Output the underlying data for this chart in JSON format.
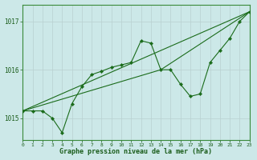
{
  "title": "Graphe pression niveau de la mer (hPa)",
  "bg_color": "#cce8e8",
  "line_color": "#1a6b1a",
  "grid_v_color": "#c8c8c8",
  "grid_h_color": "#c8c8c8",
  "yticks": [
    1015,
    1016,
    1017
  ],
  "ylim": [
    1014.55,
    1017.35
  ],
  "xlim": [
    0,
    23
  ],
  "series1_x": [
    0,
    1,
    2,
    3,
    4,
    5,
    6,
    7,
    8,
    9,
    10,
    11,
    12,
    13,
    14,
    15,
    16,
    17,
    18,
    19,
    20,
    21,
    22,
    23
  ],
  "series1_y": [
    1015.15,
    1015.15,
    1015.15,
    1015.0,
    1014.7,
    1015.3,
    1015.65,
    1015.9,
    1015.97,
    1016.05,
    1016.1,
    1016.15,
    1016.6,
    1016.55,
    1016.0,
    1016.0,
    1015.7,
    1015.45,
    1015.5,
    1016.15,
    1016.4,
    1016.65,
    1017.0,
    1017.2
  ],
  "trend_x": [
    0,
    23
  ],
  "trend_y": [
    1015.15,
    1017.2
  ],
  "trend2_x": [
    0,
    14,
    23
  ],
  "trend2_y": [
    1015.15,
    1016.0,
    1017.2
  ],
  "x_labels": [
    "0",
    "1",
    "2",
    "3",
    "4",
    "5",
    "6",
    "7",
    "8",
    "9",
    "10",
    "11",
    "12",
    "13",
    "14",
    "15",
    "16",
    "17",
    "18",
    "19",
    "20",
    "21",
    "22",
    "23"
  ]
}
